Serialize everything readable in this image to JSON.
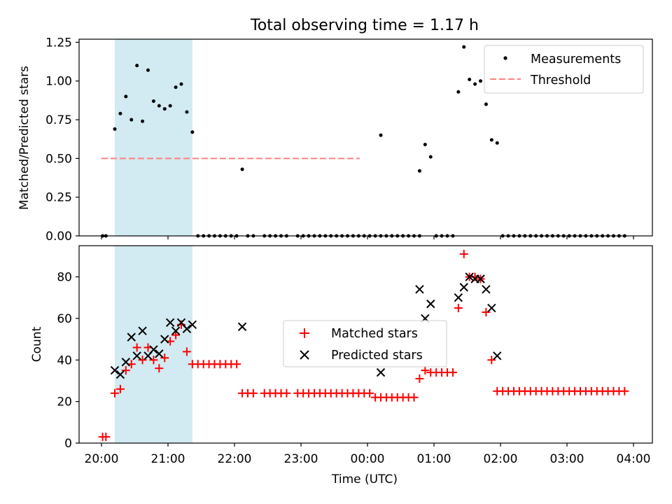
{
  "chart_data": [
    {
      "type": "scatter",
      "title": "Total observing time = 1.17 h",
      "ylabel": "Matched/Predicted stars",
      "xlabel": "",
      "xlim": [
        "20:00",
        "04:00"
      ],
      "ylim": [
        0,
        1.27
      ],
      "yticks": [
        0,
        0.25,
        0.5,
        0.75,
        1.0,
        1.25
      ],
      "ytick_labels": [
        "0.00",
        "0.25",
        "0.50",
        "0.75",
        "1.00",
        "1.25"
      ],
      "shaded_region": {
        "x": [
          "20:12",
          "21:22"
        ],
        "color": "#add8e6"
      },
      "legend": {
        "position": "upper right",
        "entries": [
          "Measurements",
          "Threshold"
        ]
      },
      "threshold": {
        "name": "Threshold",
        "y": 0.5,
        "x": [
          "20:00",
          "23:53"
        ],
        "color": "#ff8080",
        "style": "dashed"
      },
      "series": [
        {
          "name": "Measurements",
          "color": "#000000",
          "marker": "dot",
          "points": [
            [
              "20:01",
              0
            ],
            [
              "20:04",
              0
            ],
            [
              "20:12",
              0.69
            ],
            [
              "20:17",
              0.79
            ],
            [
              "20:22",
              0.9
            ],
            [
              "20:27",
              0.75
            ],
            [
              "20:32",
              1.1
            ],
            [
              "20:37",
              0.74
            ],
            [
              "20:42",
              1.07
            ],
            [
              "20:47",
              0.87
            ],
            [
              "20:52",
              0.84
            ],
            [
              "20:57",
              0.82
            ],
            [
              "21:02",
              0.84
            ],
            [
              "21:07",
              0.96
            ],
            [
              "21:12",
              0.98
            ],
            [
              "21:17",
              0.8
            ],
            [
              "21:22",
              0.67
            ],
            [
              "21:27",
              0
            ],
            [
              "21:32",
              0
            ],
            [
              "21:37",
              0
            ],
            [
              "21:42",
              0
            ],
            [
              "21:47",
              0
            ],
            [
              "21:52",
              0
            ],
            [
              "21:57",
              0
            ],
            [
              "22:02",
              0
            ],
            [
              "22:07",
              0.43
            ],
            [
              "22:12",
              0
            ],
            [
              "22:17",
              0
            ],
            [
              "22:27",
              0
            ],
            [
              "22:32",
              0
            ],
            [
              "22:37",
              0
            ],
            [
              "22:42",
              0
            ],
            [
              "22:47",
              0
            ],
            [
              "22:57",
              0
            ],
            [
              "23:02",
              0
            ],
            [
              "23:07",
              0
            ],
            [
              "23:12",
              0
            ],
            [
              "23:17",
              0
            ],
            [
              "23:22",
              0
            ],
            [
              "23:27",
              0
            ],
            [
              "23:32",
              0
            ],
            [
              "23:37",
              0
            ],
            [
              "23:42",
              0
            ],
            [
              "23:47",
              0
            ],
            [
              "23:52",
              0
            ],
            [
              "23:57",
              0
            ],
            [
              "00:02",
              0
            ],
            [
              "00:07",
              0
            ],
            [
              "00:12",
              0
            ],
            [
              "00:17",
              0
            ],
            [
              "00:22",
              0
            ],
            [
              "00:27",
              0
            ],
            [
              "00:32",
              0
            ],
            [
              "00:37",
              0
            ],
            [
              "00:42",
              0
            ],
            [
              "00:47",
              0
            ],
            [
              "00:12",
              0.65
            ],
            [
              "00:47",
              0.42
            ],
            [
              "00:52",
              0.59
            ],
            [
              "00:57",
              0.51
            ],
            [
              "01:02",
              0
            ],
            [
              "01:07",
              0
            ],
            [
              "01:12",
              0
            ],
            [
              "01:17",
              0
            ],
            [
              "01:22",
              0.93
            ],
            [
              "01:27",
              1.22
            ],
            [
              "01:32",
              1.01
            ],
            [
              "01:37",
              0.98
            ],
            [
              "01:42",
              1.0
            ],
            [
              "01:47",
              0.85
            ],
            [
              "01:52",
              0.62
            ],
            [
              "01:57",
              0.6
            ],
            [
              "02:02",
              0
            ],
            [
              "02:07",
              0
            ],
            [
              "02:12",
              0
            ],
            [
              "02:17",
              0
            ],
            [
              "02:22",
              0
            ],
            [
              "02:27",
              0
            ],
            [
              "02:32",
              0
            ],
            [
              "02:37",
              0
            ],
            [
              "02:42",
              0
            ],
            [
              "02:47",
              0
            ],
            [
              "02:52",
              0
            ],
            [
              "02:57",
              0
            ],
            [
              "03:02",
              0
            ],
            [
              "03:07",
              0
            ],
            [
              "03:12",
              0
            ],
            [
              "03:17",
              0
            ],
            [
              "03:22",
              0
            ],
            [
              "03:27",
              0
            ],
            [
              "03:32",
              0
            ],
            [
              "03:37",
              0
            ],
            [
              "03:42",
              0
            ],
            [
              "03:47",
              0
            ],
            [
              "03:52",
              0
            ]
          ]
        }
      ]
    },
    {
      "type": "scatter",
      "title": "",
      "ylabel": "Count",
      "xlabel": "Time (UTC)",
      "xlim": [
        "20:00",
        "04:00"
      ],
      "ylim": [
        0,
        95
      ],
      "yticks": [
        0,
        20,
        40,
        60,
        80
      ],
      "xtick_labels": [
        "20:00",
        "21:00",
        "22:00",
        "23:00",
        "00:00",
        "01:00",
        "02:00",
        "03:00",
        "04:00"
      ],
      "shaded_region": {
        "x": [
          "20:12",
          "21:22"
        ],
        "color": "#add8e6"
      },
      "legend": {
        "position": "center",
        "entries": [
          "Matched stars",
          "Predicted stars"
        ]
      },
      "series": [
        {
          "name": "Matched stars",
          "color": "#ff0000",
          "marker": "plus",
          "points": [
            [
              "20:01",
              3
            ],
            [
              "20:04",
              3
            ],
            [
              "20:12",
              24
            ],
            [
              "20:17",
              26
            ],
            [
              "20:22",
              35
            ],
            [
              "20:27",
              38
            ],
            [
              "20:32",
              46
            ],
            [
              "20:37",
              40
            ],
            [
              "20:42",
              46
            ],
            [
              "20:47",
              40
            ],
            [
              "20:52",
              36
            ],
            [
              "20:57",
              41
            ],
            [
              "21:02",
              49
            ],
            [
              "21:07",
              52
            ],
            [
              "21:12",
              57
            ],
            [
              "21:17",
              44
            ],
            [
              "21:22",
              38
            ],
            [
              "21:27",
              38
            ],
            [
              "21:32",
              38
            ],
            [
              "21:37",
              38
            ],
            [
              "21:42",
              38
            ],
            [
              "21:47",
              38
            ],
            [
              "21:52",
              38
            ],
            [
              "21:57",
              38
            ],
            [
              "22:02",
              38
            ],
            [
              "22:07",
              24
            ],
            [
              "22:12",
              24
            ],
            [
              "22:17",
              24
            ],
            [
              "22:27",
              24
            ],
            [
              "22:32",
              24
            ],
            [
              "22:37",
              24
            ],
            [
              "22:42",
              24
            ],
            [
              "22:47",
              24
            ],
            [
              "22:57",
              24
            ],
            [
              "23:02",
              24
            ],
            [
              "23:07",
              24
            ],
            [
              "23:12",
              24
            ],
            [
              "23:17",
              24
            ],
            [
              "23:22",
              24
            ],
            [
              "23:27",
              24
            ],
            [
              "23:32",
              24
            ],
            [
              "23:37",
              24
            ],
            [
              "23:42",
              24
            ],
            [
              "23:47",
              24
            ],
            [
              "23:52",
              24
            ],
            [
              "23:57",
              24
            ],
            [
              "00:02",
              24
            ],
            [
              "00:07",
              22
            ],
            [
              "00:12",
              22
            ],
            [
              "00:17",
              22
            ],
            [
              "00:22",
              22
            ],
            [
              "00:27",
              22
            ],
            [
              "00:32",
              22
            ],
            [
              "00:37",
              22
            ],
            [
              "00:42",
              22
            ],
            [
              "00:47",
              31
            ],
            [
              "00:52",
              35
            ],
            [
              "00:57",
              34
            ],
            [
              "01:02",
              34
            ],
            [
              "01:07",
              34
            ],
            [
              "01:12",
              34
            ],
            [
              "01:17",
              34
            ],
            [
              "01:22",
              65
            ],
            [
              "01:27",
              91
            ],
            [
              "01:32",
              80
            ],
            [
              "01:37",
              80
            ],
            [
              "01:42",
              79
            ],
            [
              "01:47",
              63
            ],
            [
              "01:52",
              40
            ],
            [
              "01:57",
              25
            ],
            [
              "02:02",
              25
            ],
            [
              "02:07",
              25
            ],
            [
              "02:12",
              25
            ],
            [
              "02:17",
              25
            ],
            [
              "02:22",
              25
            ],
            [
              "02:27",
              25
            ],
            [
              "02:32",
              25
            ],
            [
              "02:37",
              25
            ],
            [
              "02:42",
              25
            ],
            [
              "02:47",
              25
            ],
            [
              "02:52",
              25
            ],
            [
              "02:57",
              25
            ],
            [
              "03:02",
              25
            ],
            [
              "03:07",
              25
            ],
            [
              "03:12",
              25
            ],
            [
              "03:17",
              25
            ],
            [
              "03:22",
              25
            ],
            [
              "03:27",
              25
            ],
            [
              "03:32",
              25
            ],
            [
              "03:37",
              25
            ],
            [
              "03:42",
              25
            ],
            [
              "03:47",
              25
            ],
            [
              "03:52",
              25
            ]
          ]
        },
        {
          "name": "Predicted stars",
          "color": "#000000",
          "marker": "x",
          "points": [
            [
              "20:12",
              35
            ],
            [
              "20:17",
              33
            ],
            [
              "20:22",
              39
            ],
            [
              "20:27",
              51
            ],
            [
              "20:32",
              42
            ],
            [
              "20:37",
              54
            ],
            [
              "20:42",
              42
            ],
            [
              "20:47",
              45
            ],
            [
              "20:52",
              43
            ],
            [
              "20:57",
              50
            ],
            [
              "21:02",
              58
            ],
            [
              "21:07",
              54
            ],
            [
              "21:12",
              58
            ],
            [
              "21:17",
              55
            ],
            [
              "21:22",
              57
            ],
            [
              "22:07",
              56
            ],
            [
              "00:12",
              34
            ],
            [
              "00:47",
              74
            ],
            [
              "00:52",
              60
            ],
            [
              "00:57",
              67
            ],
            [
              "01:22",
              70
            ],
            [
              "01:27",
              75
            ],
            [
              "01:32",
              80
            ],
            [
              "01:37",
              79
            ],
            [
              "01:42",
              79
            ],
            [
              "01:47",
              74
            ],
            [
              "01:52",
              65
            ],
            [
              "01:57",
              42
            ]
          ]
        }
      ]
    }
  ]
}
